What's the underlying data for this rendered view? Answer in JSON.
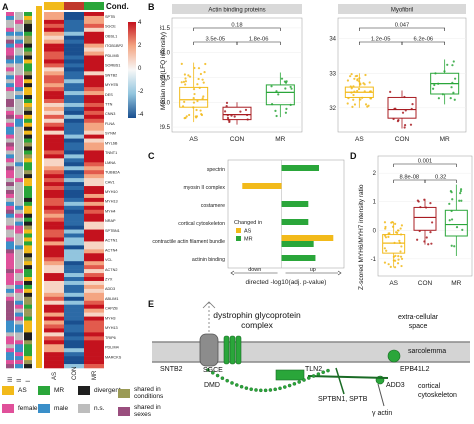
{
  "panelA": {
    "letter": "A",
    "legend_title": "Cond.",
    "colorbar_ticks": [
      "4",
      "2",
      "0",
      "-2",
      "-4"
    ],
    "col_labels": [
      "AS",
      "CON",
      "MR"
    ],
    "side_labels": [
      "III",
      "II",
      "I"
    ],
    "gene_labels": [
      "SPTB",
      "SGCE",
      "OBSL1",
      "ITGB1BP2",
      "PDLIM5",
      "SORBS1",
      "SNTB2",
      "MYH7B",
      "DES",
      "TTN",
      "CNN3",
      "FLNA",
      "SYNM",
      "MYL6B",
      "TNNT1",
      "LMNA",
      "TUBB2A",
      "CAV1",
      "MYH10",
      "MYH13",
      "MYH4",
      "NRAP",
      "SPTBN1",
      "ACTN1",
      "ACTN4",
      "VCL",
      "ACTN2",
      "ZYX",
      "ADD3",
      "ABLIM1",
      "CAPZB",
      "MYH3",
      "MYH13",
      "TRIP6",
      "PDLIM4",
      "MARCKS"
    ]
  },
  "legend": {
    "items": [
      {
        "label": "AS",
        "color": "#f2ba1a"
      },
      {
        "label": "MR",
        "color": "#2aa63a"
      },
      {
        "label": "divergent",
        "color": "#1f1f1f"
      },
      {
        "label": "shared in conditions",
        "color": "#9a9a55"
      },
      {
        "label": "female",
        "color": "#e0509a"
      },
      {
        "label": "male",
        "color": "#3a8fc9"
      },
      {
        "label": "n.s.",
        "color": "#bdbdbd"
      },
      {
        "label": "shared in sexes",
        "color": "#9a4e7e"
      }
    ]
  },
  "panelB": {
    "letter": "B",
    "ylabel": "Median log2(LFQ intensity)",
    "plots": [
      {
        "strip": "Actin binding proteins",
        "yticks": [
          "31.5",
          "31.0",
          "30.5",
          "30.0",
          "29.5"
        ],
        "pvals": [
          "0.18",
          "3.5e-05",
          "1.8e-06"
        ],
        "xticks": [
          "AS",
          "CON",
          "MR"
        ]
      },
      {
        "strip": "Myofibril",
        "yticks": [
          "34",
          "33",
          "32"
        ],
        "pvals": [
          "0.047",
          "1.2e-05",
          "6.2e-06"
        ],
        "xticks": [
          "AS",
          "CON",
          "MR"
        ]
      }
    ]
  },
  "panelC": {
    "letter": "C",
    "categories": [
      "spectrin",
      "myosin II complex",
      "costamere",
      "cortical cytoskeleton",
      "contractile actin filament bundle",
      "actinin binding"
    ],
    "xlabel": "directed -log10(adj. p-value)",
    "down_label": "down",
    "up_label": "up",
    "legend_title": "Changed in",
    "legend_items": [
      "AS",
      "MR"
    ]
  },
  "panelD": {
    "letter": "D",
    "ylabel": "Z-scored MYH6/MYH7 intensity ratio",
    "yticks": [
      "2",
      "1",
      "0",
      "-1"
    ],
    "pvals": [
      "0.001",
      "8.8e-08",
      "0.32"
    ],
    "xticks": [
      "AS",
      "CON",
      "MR"
    ]
  },
  "panelE": {
    "letter": "E",
    "labels": {
      "dgc": "dystrophin glycoprotein\ncomplex",
      "extracellular": "extra-cellular\nspace",
      "sarcolemma": "sarcolemma",
      "sntb2": "SNTB2",
      "sgce": "SGCE",
      "dmd": "DMD",
      "tln2": "TLN2",
      "epb41l2": "EPB41L2",
      "add3": "ADD3",
      "cortical": "cortical\ncytoskeleton",
      "sptbn1": "SPTBN1, SPTB",
      "gactin": "γ actin"
    }
  },
  "chart_data": [
    {
      "type": "bar",
      "title": "",
      "categories": [
        "spectrin",
        "myosin II complex",
        "costamere",
        "cortical cytoskeleton",
        "contractile actin filament bundle",
        "actinin binding"
      ],
      "series": [
        {
          "name": "AS",
          "values": [
            0,
            -2.2,
            0,
            0,
            2.9,
            0
          ]
        },
        {
          "name": "MR",
          "values": [
            2.1,
            0,
            1.5,
            1.5,
            1.8,
            1.9
          ]
        }
      ],
      "xlabel": "directed -log10(adj. p-value)",
      "xlim": [
        -3,
        3.5
      ]
    },
    {
      "type": "box",
      "title": "Actin binding proteins",
      "categories": [
        "AS",
        "CON",
        "MR"
      ],
      "ylabel": "Median log2(LFQ intensity)",
      "ylim": [
        29.4,
        31.7
      ],
      "annotations": [
        "0.18",
        "3.5e-05",
        "1.8e-06"
      ]
    },
    {
      "type": "box",
      "title": "Myofibril",
      "categories": [
        "AS",
        "CON",
        "MR"
      ],
      "ylim": [
        31.3,
        34.6
      ],
      "annotations": [
        "0.047",
        "1.2e-05",
        "6.2e-06"
      ]
    },
    {
      "type": "box",
      "title": "",
      "categories": [
        "AS",
        "CON",
        "MR"
      ],
      "ylabel": "Z-scored MYH6/MYH7 intensity ratio",
      "ylim": [
        -1.6,
        2.6
      ],
      "annotations": [
        "0.001",
        "8.8e-08",
        "0.32"
      ]
    }
  ]
}
